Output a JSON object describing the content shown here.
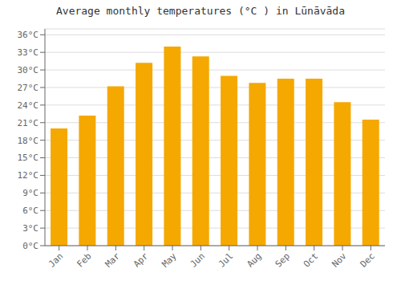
{
  "chart_data": {
    "type": "bar",
    "title": "Average monthly temperatures (°C ) in Lūnāvāda",
    "categories": [
      "Jan",
      "Feb",
      "Mar",
      "Apr",
      "May",
      "Jun",
      "Jul",
      "Aug",
      "Sep",
      "Oct",
      "Nov",
      "Dec"
    ],
    "values": [
      20.0,
      22.2,
      27.2,
      31.2,
      34.0,
      32.3,
      29.0,
      27.8,
      28.5,
      28.5,
      24.5,
      21.5
    ],
    "color": "#F5A800",
    "ylim": [
      0,
      37
    ],
    "yticks": [
      {
        "value": 0,
        "label": "0°C"
      },
      {
        "value": 3,
        "label": "3°C"
      },
      {
        "value": 6,
        "label": "6°C"
      },
      {
        "value": 9,
        "label": "9°C"
      },
      {
        "value": 12,
        "label": "12°C"
      },
      {
        "value": 15,
        "label": "15°C"
      },
      {
        "value": 18,
        "label": "18°C"
      },
      {
        "value": 21,
        "label": "21°C"
      },
      {
        "value": 24,
        "label": "24°C"
      },
      {
        "value": 27,
        "label": "27°C"
      },
      {
        "value": 30,
        "label": "30°C"
      },
      {
        "value": 33,
        "label": "33°C"
      },
      {
        "value": 36,
        "label": "36°C"
      }
    ],
    "grid": true
  }
}
